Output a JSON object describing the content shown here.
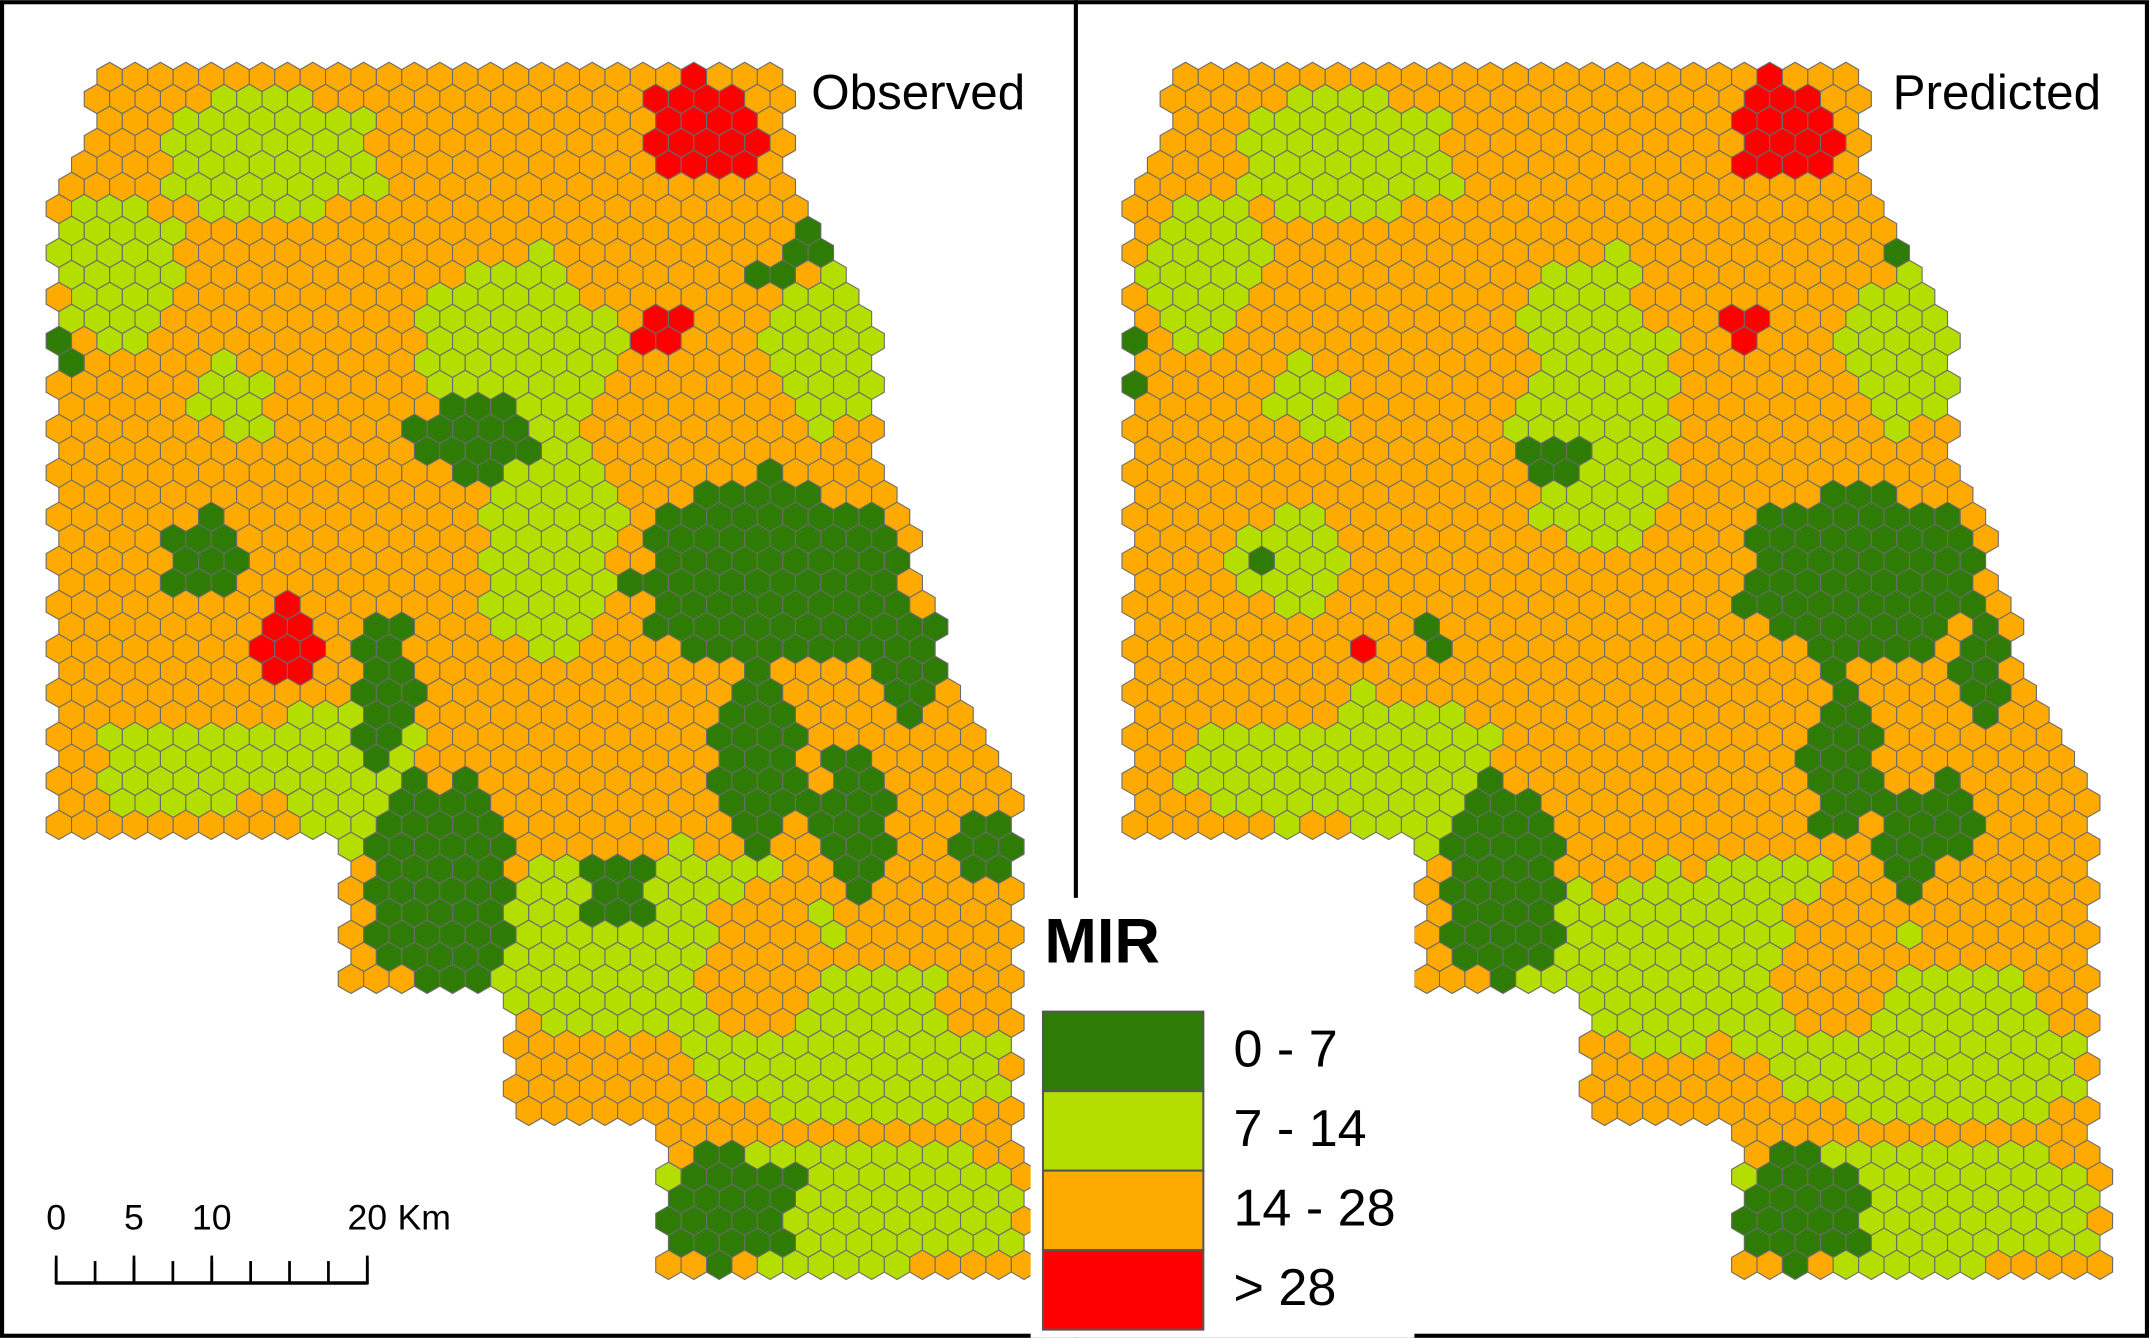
{
  "panels": [
    {
      "title": "Observed"
    },
    {
      "title": "Predicted"
    }
  ],
  "legend": {
    "title": "MIR",
    "items": [
      {
        "label": "0 - 7",
        "color": "#2e7b06"
      },
      {
        "label": "7 - 14",
        "color": "#b3de00"
      },
      {
        "label": "14 - 28",
        "color": "#ffaa00"
      },
      {
        "label": "> 28",
        "color": "#ff0000"
      }
    ]
  },
  "scale_bar": {
    "ticks": [
      0,
      5,
      10,
      20
    ],
    "unit": "Km"
  }
}
